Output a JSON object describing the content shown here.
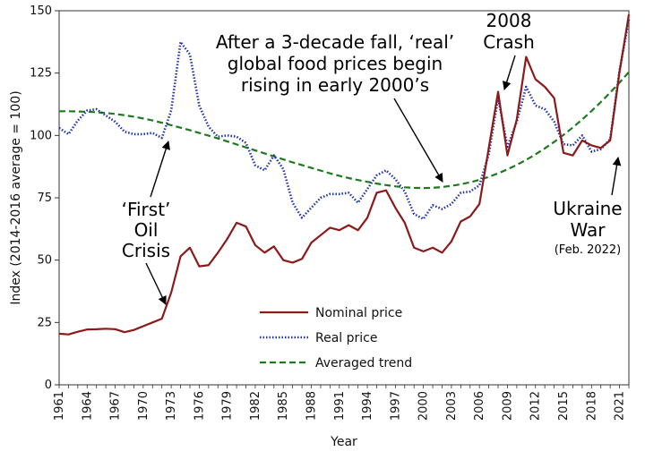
{
  "chart_data": {
    "type": "line",
    "title": "",
    "xlabel": "Year",
    "ylabel": "Index (2014-2016 average = 100)",
    "xlim": [
      1961,
      2022
    ],
    "ylim": [
      0,
      150
    ],
    "yticks": [
      "0",
      "25",
      "50",
      "75",
      "100",
      "125",
      "150"
    ],
    "xticks": [
      "1961",
      "1964",
      "1967",
      "1970",
      "1973",
      "1976",
      "1979",
      "1982",
      "1985",
      "1988",
      "1991",
      "1994",
      "1997",
      "2000",
      "2003",
      "2006",
      "2009",
      "2012",
      "2015",
      "2018",
      "2021"
    ],
    "x": [
      1961,
      1962,
      1963,
      1964,
      1965,
      1966,
      1967,
      1968,
      1969,
      1970,
      1971,
      1972,
      1973,
      1974,
      1975,
      1976,
      1977,
      1978,
      1979,
      1980,
      1981,
      1982,
      1983,
      1984,
      1985,
      1986,
      1987,
      1988,
      1989,
      1990,
      1991,
      1992,
      1993,
      1994,
      1995,
      1996,
      1997,
      1998,
      1999,
      2000,
      2001,
      2002,
      2003,
      2004,
      2005,
      2006,
      2007,
      2008,
      2009,
      2010,
      2011,
      2012,
      2013,
      2014,
      2015,
      2016,
      2017,
      2018,
      2019,
      2020,
      2021,
      2022
    ],
    "series": [
      {
        "name": "Nominal price",
        "color": "#8b1a1a",
        "style": "solid",
        "values": [
          20.5,
          20.2,
          21.3,
          22.2,
          22.3,
          22.5,
          22.3,
          21.1,
          22.0,
          23.5,
          25.0,
          26.5,
          37.0,
          51.5,
          55.0,
          47.5,
          48.0,
          53.0,
          58.5,
          65.0,
          63.5,
          56.0,
          53.0,
          55.5,
          50.0,
          49.0,
          50.5,
          57.0,
          60.0,
          63.0,
          62.0,
          64.0,
          62.0,
          67.0,
          77.0,
          78.0,
          71.0,
          65.0,
          55.0,
          53.5,
          55.0,
          53.0,
          57.5,
          65.5,
          67.5,
          72.5,
          95.0,
          117.5,
          92.0,
          106.5,
          131.5,
          122.5,
          119.5,
          115.0,
          93.0,
          92.0,
          98.0,
          96.0,
          95.0,
          98.0,
          125.5,
          148.5
        ]
      },
      {
        "name": "Real price",
        "color": "#2233aa",
        "style": "dotted",
        "values": [
          103.0,
          100.5,
          106.0,
          110.0,
          110.5,
          108.0,
          105.5,
          101.5,
          100.5,
          100.5,
          101.0,
          99.0,
          110.0,
          137.5,
          132.5,
          112.0,
          103.5,
          99.5,
          100.0,
          99.5,
          97.0,
          88.0,
          86.0,
          92.0,
          86.5,
          73.0,
          67.0,
          71.0,
          75.0,
          76.5,
          76.5,
          77.0,
          73.0,
          78.5,
          84.0,
          86.0,
          82.5,
          77.5,
          68.5,
          66.5,
          72.0,
          70.5,
          72.5,
          77.0,
          77.5,
          80.0,
          92.5,
          115.0,
          95.5,
          105.5,
          119.5,
          112.0,
          110.5,
          105.5,
          96.5,
          96.0,
          100.0,
          93.5,
          94.5,
          98.5,
          126.0,
          146.5
        ]
      },
      {
        "name": "Averaged trend",
        "color": "#1e7a1e",
        "style": "dashed",
        "values": [
          109.7,
          109.7,
          109.6,
          109.5,
          109.3,
          109.0,
          108.6,
          108.1,
          107.5,
          106.8,
          106.0,
          105.1,
          104.1,
          103.1,
          102.1,
          101.0,
          99.9,
          98.8,
          97.6,
          96.4,
          95.2,
          94.0,
          92.8,
          91.6,
          90.4,
          89.2,
          88.1,
          87.0,
          85.9,
          84.8,
          83.8,
          82.9,
          82.1,
          81.4,
          80.7,
          80.1,
          79.6,
          79.2,
          79.0,
          78.9,
          79.0,
          79.3,
          79.8,
          80.4,
          81.2,
          82.2,
          83.4,
          84.8,
          86.4,
          88.2,
          90.2,
          92.4,
          94.8,
          97.4,
          100.2,
          103.2,
          106.4,
          109.8,
          113.4,
          117.2,
          121.2,
          125.4
        ]
      }
    ],
    "legend_position": "bottom-center",
    "annotations": {
      "headline": [
        "After a 3-decade fall, ‘real’",
        "global food prices begin",
        "rising in early 2000’s"
      ],
      "oil": [
        "‘First’",
        "Oil",
        "Crisis"
      ],
      "crash": [
        "2008",
        "Crash"
      ],
      "ukraine": [
        "Ukraine",
        "War"
      ],
      "ukraine_date": "(Feb. 2022)"
    }
  }
}
